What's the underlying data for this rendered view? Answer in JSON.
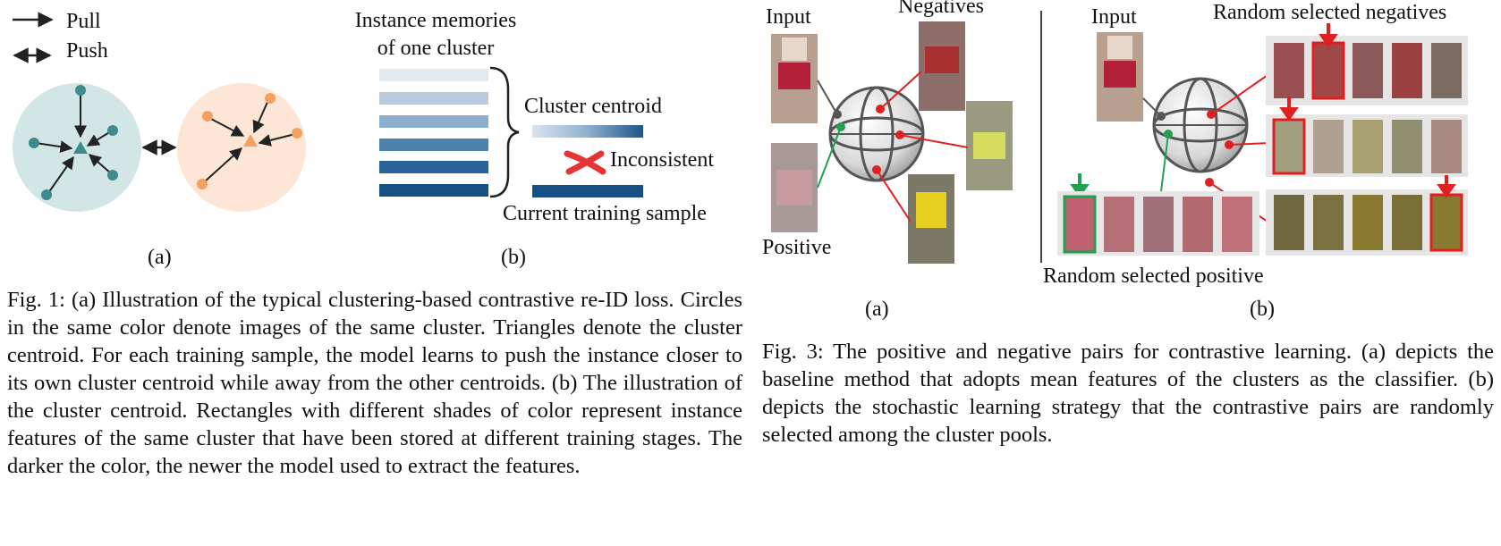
{
  "fig1": {
    "legend": {
      "pull": "Pull",
      "push": "Push"
    },
    "panel_b": {
      "title_line1": "Instance memories",
      "title_line2": "of one cluster",
      "centroid_label": "Cluster centroid",
      "inconsistent_label": "Inconsistent",
      "current_label": "Current training sample"
    },
    "sub_a": "(a)",
    "sub_b": "(b)",
    "caption": "Fig. 1: (a) Illustration of the typical clustering-based contrastive re-ID loss. Circles in the same color denote images of the same cluster. Triangles denote the cluster centroid. For each training sample, the model learns to push the instance closer to its own cluster centroid while away from the other centroids. (b) The illustration of the cluster centroid. Rectangles with different shades of color represent instance features of the same cluster that have been stored at different training stages. The darker the color, the newer the model used to extract the features.",
    "colors": {
      "teal_cluster": "#d3e6e6",
      "teal_point": "#3f8a8c",
      "orange_cluster": "#fde6d6",
      "orange_point": "#f3a060"
    }
  },
  "fig3": {
    "panel_a": {
      "input": "Input",
      "negatives": "Negatives",
      "positive": "Positive"
    },
    "panel_b": {
      "input": "Input",
      "negatives": "Random selected negatives",
      "positive": "Random selected positive"
    },
    "sub_a": "(a)",
    "sub_b": "(b)",
    "caption": "Fig. 3: The positive and negative pairs for contrastive learning. (a) depicts the baseline method that adopts mean features of the clusters as the classifier. (b) depicts the stochastic learning strategy that the contrastive pairs are randomly selected among the cluster pools.",
    "colors": {
      "negative": "#e02020",
      "positive": "#22a050"
    }
  }
}
